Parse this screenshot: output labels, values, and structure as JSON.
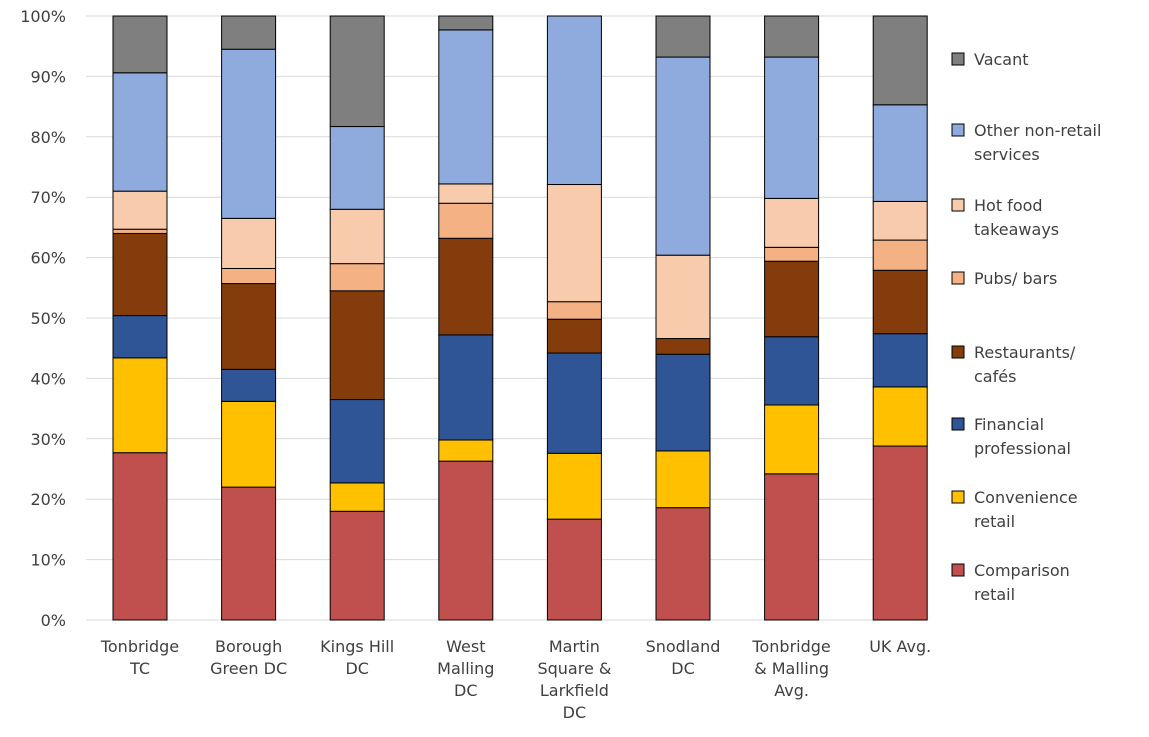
{
  "chart_data": {
    "type": "bar",
    "stacked": true,
    "percent_stacked": true,
    "categories": [
      [
        "Tonbridge",
        "TC"
      ],
      [
        "Borough",
        "Green DC"
      ],
      [
        "Kings Hill",
        "DC"
      ],
      [
        "West",
        "Malling",
        "DC"
      ],
      [
        "Martin",
        "Square &",
        "Larkfield",
        "DC"
      ],
      [
        "Snodland",
        "DC"
      ],
      [
        "Tonbridge",
        "& Malling",
        "Avg."
      ],
      [
        "UK Avg."
      ]
    ],
    "ylim": [
      0,
      100
    ],
    "yticks": [
      "0%",
      "10%",
      "20%",
      "30%",
      "40%",
      "50%",
      "60%",
      "70%",
      "80%",
      "90%",
      "100%"
    ],
    "gridlines": true,
    "legend_position": "right",
    "series": [
      {
        "name": [
          "Comparison",
          "retail"
        ],
        "color": "#c0504d",
        "values": [
          27.7,
          22.0,
          18.0,
          26.3,
          16.7,
          18.6,
          24.2,
          28.8
        ]
      },
      {
        "name": [
          "Convenience",
          "retail"
        ],
        "color": "#ffc000",
        "values": [
          15.7,
          14.2,
          4.7,
          3.5,
          10.9,
          9.4,
          11.4,
          9.8
        ]
      },
      {
        "name": [
          "Financial",
          "professional"
        ],
        "color": "#2f5597",
        "values": [
          7.0,
          5.3,
          13.8,
          17.4,
          16.6,
          16.0,
          11.3,
          8.8
        ]
      },
      {
        "name": [
          "Restaurants/",
          "cafés"
        ],
        "color": "#843c0c",
        "values": [
          13.6,
          14.2,
          18.0,
          16.0,
          5.6,
          2.6,
          12.5,
          10.5
        ]
      },
      {
        "name": [
          "Pubs/ bars"
        ],
        "color": "#f4b183",
        "values": [
          0.7,
          2.5,
          4.5,
          5.8,
          2.9,
          0.0,
          2.3,
          5.0
        ]
      },
      {
        "name": [
          "Hot food",
          "takeaways"
        ],
        "color": "#f8cbad",
        "values": [
          6.3,
          8.3,
          9.0,
          3.2,
          19.4,
          13.8,
          8.1,
          6.4
        ]
      },
      {
        "name": [
          "Other non-retail",
          "services"
        ],
        "color": "#8faadc",
        "values": [
          19.6,
          28.0,
          13.7,
          25.5,
          27.9,
          32.8,
          23.4,
          16.0
        ]
      },
      {
        "name": [
          "Vacant"
        ],
        "color": "#7f7f7f",
        "values": [
          9.4,
          5.5,
          18.3,
          2.3,
          0.0,
          6.8,
          6.8,
          14.7
        ]
      }
    ]
  }
}
